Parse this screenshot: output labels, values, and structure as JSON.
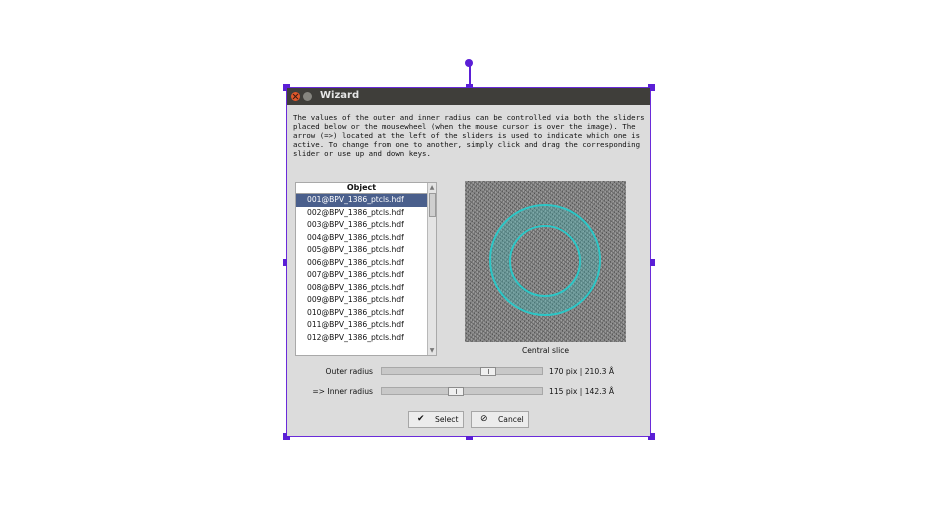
{
  "window": {
    "title": "Wizard"
  },
  "description": "The values of the outer and inner radius can be controlled via both the sliders\nplaced below or the mousewheel (when the mouse cursor is over the image). The\narrow (=>) located at the left of the sliders is used to indicate which one is\nactive. To change from one to another, simply click and drag the corresponding\nslider or use up and down keys.",
  "list": {
    "header": "Object",
    "items": [
      "001@BPV_1386_ptcls.hdf",
      "002@BPV_1386_ptcls.hdf",
      "003@BPV_1386_ptcls.hdf",
      "004@BPV_1386_ptcls.hdf",
      "005@BPV_1386_ptcls.hdf",
      "006@BPV_1386_ptcls.hdf",
      "007@BPV_1386_ptcls.hdf",
      "008@BPV_1386_ptcls.hdf",
      "009@BPV_1386_ptcls.hdf",
      "010@BPV_1386_ptcls.hdf",
      "011@BPV_1386_ptcls.hdf",
      "012@BPV_1386_ptcls.hdf"
    ],
    "selected_index": 0
  },
  "image": {
    "caption": "Central slice",
    "ring_color": "#2cc6c6"
  },
  "outer_radius": {
    "label": "Outer radius",
    "value_text": "170 pix |  210.3 Å",
    "slider_position": 0.68
  },
  "inner_radius": {
    "label": "=> Inner radius",
    "value_text": "115 pix |  142.3 Å",
    "slider_position": 0.46
  },
  "buttons": {
    "select": {
      "label": "Select",
      "icon": "checkmark-icon"
    },
    "cancel": {
      "label": "Cancel",
      "icon": "cancel-icon"
    }
  },
  "colors": {
    "accent": "#5b1fd6",
    "selection": "#4a5f8c"
  }
}
